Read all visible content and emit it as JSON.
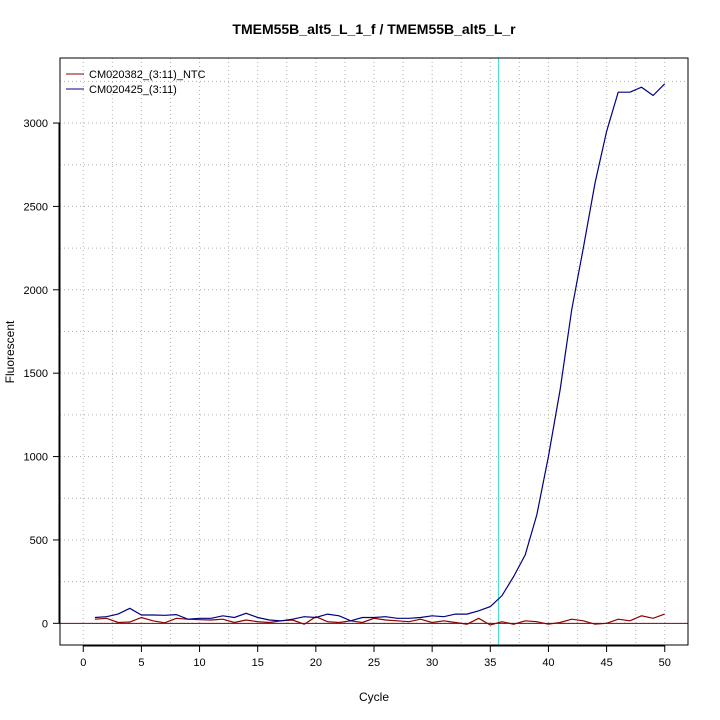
{
  "chart_data": {
    "type": "line",
    "title": "TMEM55B_alt5_L_1_f / TMEM55B_alt5_L_r",
    "xlabel": "Cycle",
    "ylabel": "Fluorescent",
    "xlim": [
      -2,
      52
    ],
    "ylim": [
      -130,
      3390
    ],
    "x_ticks": [
      0,
      5,
      10,
      15,
      20,
      25,
      30,
      35,
      40,
      45,
      50
    ],
    "y_ticks": [
      0,
      500,
      1000,
      1500,
      2000,
      2500,
      3000
    ],
    "x_tick_labels": [
      "0",
      "5",
      "10",
      "15",
      "20",
      "25",
      "30",
      "35",
      "40",
      "45",
      "50"
    ],
    "y_tick_labels": [
      "0",
      "500",
      "1000",
      "1500",
      "2000",
      "2500",
      "3000"
    ],
    "x_grid": [
      2.5,
      7.5,
      12.5,
      17.5,
      22.5,
      27.5,
      32.5,
      37.5,
      42.5,
      47.5
    ],
    "y_grid": [
      0,
      250,
      500,
      750,
      1000,
      1250,
      1500,
      1750,
      2000,
      2250,
      2500,
      2750,
      3000,
      3250
    ],
    "grid": true,
    "legend_position": "top-left",
    "threshold": {
      "axis": "x",
      "value": 35.7,
      "color": "#40e0d0"
    },
    "baseline": {
      "axis": "y",
      "value": 0,
      "color": "#8b0000"
    },
    "x": [
      1,
      2,
      3,
      4,
      5,
      6,
      7,
      8,
      9,
      10,
      11,
      12,
      13,
      14,
      15,
      16,
      17,
      18,
      19,
      20,
      21,
      22,
      23,
      24,
      25,
      26,
      27,
      28,
      29,
      30,
      31,
      32,
      33,
      34,
      35,
      36,
      37,
      38,
      39,
      40,
      41,
      42,
      43,
      44,
      45,
      46,
      47,
      48,
      49,
      50
    ],
    "series": [
      {
        "name": "CM020382_(3:11)_NTC",
        "color": "#8b0000",
        "values": [
          25,
          30,
          5,
          8,
          35,
          15,
          3,
          30,
          25,
          22,
          20,
          25,
          5,
          20,
          10,
          5,
          15,
          20,
          -5,
          40,
          10,
          5,
          15,
          5,
          30,
          20,
          15,
          10,
          25,
          5,
          15,
          5,
          -5,
          30,
          -10,
          10,
          -5,
          15,
          10,
          -5,
          5,
          25,
          15,
          -5,
          0,
          25,
          15,
          45,
          30,
          55
        ]
      },
      {
        "name": "CM020425_(3:11)",
        "color": "#000080",
        "values": [
          35,
          40,
          55,
          90,
          50,
          50,
          48,
          52,
          25,
          30,
          30,
          45,
          35,
          60,
          35,
          20,
          15,
          25,
          40,
          35,
          55,
          45,
          15,
          35,
          35,
          40,
          30,
          30,
          35,
          45,
          40,
          55,
          55,
          75,
          100,
          165,
          280,
          410,
          650,
          1000,
          1400,
          1880,
          2250,
          2640,
          2950,
          3185,
          3185,
          3215,
          3165,
          3235
        ]
      }
    ]
  }
}
